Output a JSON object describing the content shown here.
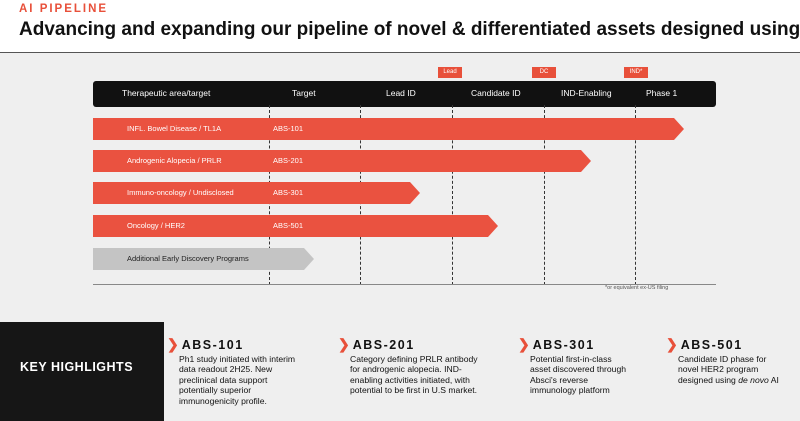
{
  "header": {
    "eyebrow": "AI PIPELINE",
    "title": "Advancing and expanding our pipeline of novel & differentiated assets designed using AI"
  },
  "milestones": {
    "lead": "Lead",
    "dc": "DC",
    "ind": "IND*"
  },
  "columns": [
    "Therapeutic area/target",
    "Target",
    "Lead ID",
    "Candidate ID",
    "IND-Enabling",
    "Phase 1"
  ],
  "programs": [
    {
      "area": "INFL. Bowel Disease / TL1A",
      "asset": "ABS-101",
      "stage": "Phase 1"
    },
    {
      "area": "Androgenic Alopecia / PRLR",
      "asset": "ABS-201",
      "stage": "IND-Enabling"
    },
    {
      "area": "Immuno-oncology / Undisclosed",
      "asset": "ABS-301",
      "stage": "Lead ID"
    },
    {
      "area": "Oncology / HER2",
      "asset": "ABS-501",
      "stage": "Candidate ID"
    },
    {
      "area": "Additional Early Discovery Programs",
      "asset": "",
      "stage": "Target"
    }
  ],
  "footnote": "*or equivalent ex-US filing",
  "highlights": {
    "label": "KEY HIGHLIGHTS",
    "items": [
      {
        "name": "ABS-101",
        "lines": [
          "Ph1 study initiated with interim",
          "data readout 2H25. New",
          "preclinical data support",
          "potentially superior",
          "immunogenicity profile."
        ]
      },
      {
        "name": "ABS-201",
        "lines": [
          "Category defining PRLR antibody",
          "for androgenic alopecia. IND-",
          "enabling activities initiated, with",
          "potential to be first in U.S market."
        ]
      },
      {
        "name": "ABS-301",
        "lines": [
          "Potential first-in-class",
          "asset discovered through",
          "Absci's reverse",
          "immunology platform"
        ]
      },
      {
        "name": "ABS-501",
        "lines": [
          "Candidate ID phase for",
          "novel HER2 program",
          "designed using"
        ],
        "italic": "de novo",
        "tail": " AI"
      }
    ]
  },
  "colors": {
    "accent": "#e8503a",
    "bar": "#ea5240",
    "gray_bar": "#c4c4c4",
    "dark": "#111111"
  }
}
